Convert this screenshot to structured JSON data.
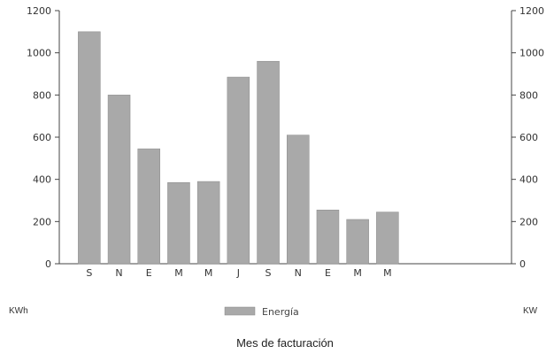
{
  "chart_data": {
    "type": "bar",
    "categories": [
      "S",
      "N",
      "E",
      "M",
      "M",
      "J",
      "S",
      "N",
      "E",
      "M",
      "M"
    ],
    "series": [
      {
        "name": "Energía",
        "values": [
          1100,
          800,
          545,
          385,
          390,
          885,
          960,
          610,
          255,
          210,
          245
        ]
      }
    ],
    "xlabel": "Mes de facturación",
    "ylabel_left": "KWh",
    "ylabel_right": "KW",
    "ylim": [
      0,
      1200
    ],
    "yticks": [
      "0",
      "200",
      "400",
      "600",
      "800",
      "1000",
      "1200"
    ],
    "grid": false,
    "legend": "bottom-center",
    "bar_color": "#a9a9a9"
  }
}
